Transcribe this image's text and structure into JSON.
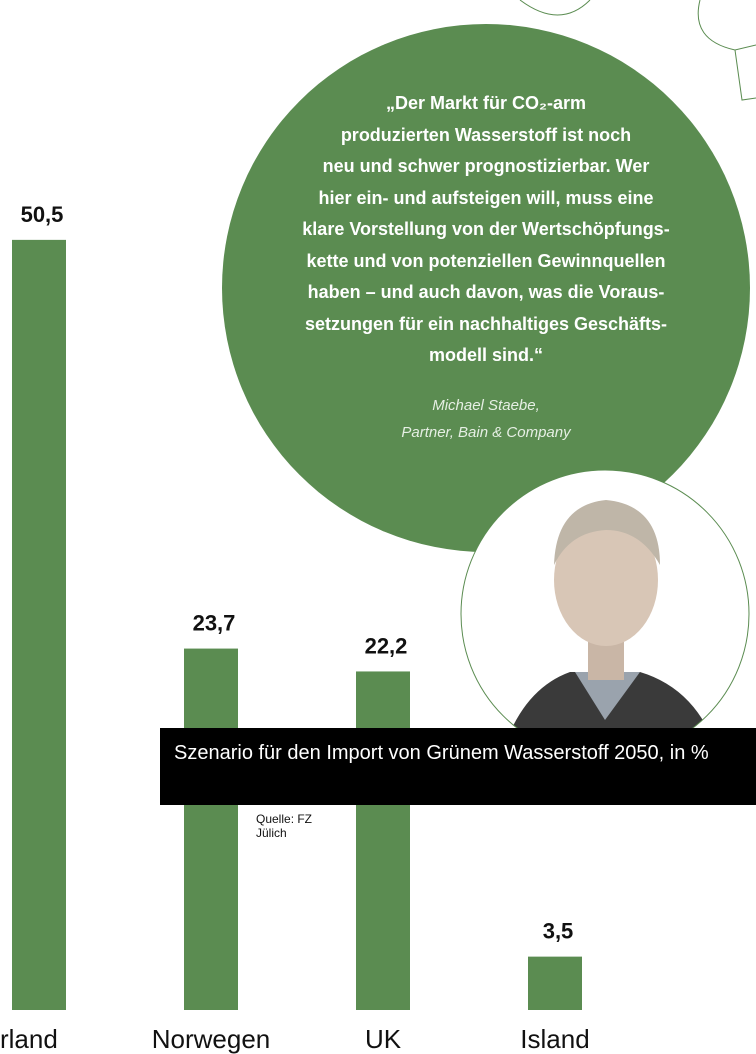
{
  "chart_data": {
    "type": "bar",
    "title": "Szenario für den Import von Grünem Wasserstoff 2050, in %",
    "source": "Quelle: FZ Jülich",
    "categories": [
      "rland",
      "Norwegen",
      "UK",
      "Island"
    ],
    "values": [
      50.5,
      23.7,
      22.2,
      3.5
    ],
    "value_labels": [
      "50,5",
      "23,7",
      "22,2",
      "3,5"
    ],
    "color": "#5b8c51"
  },
  "quote": {
    "lines": [
      "„Der Markt für CO₂-arm",
      "produzierten Wasserstoff ist noch",
      "neu und schwer prognostizierbar. Wer",
      "hier ein- und aufsteigen will, muss eine",
      "klare Vorstellung von der Wertschöpfungs-",
      "kette und von potenziellen Gewinnquellen",
      "haben – und auch davon, was die Voraus-",
      "setzungen für ein nachhaltiges Geschäfts-",
      "modell sind.“"
    ],
    "author": [
      "Michael Staebe,",
      "Partner, Bain & Company"
    ]
  }
}
